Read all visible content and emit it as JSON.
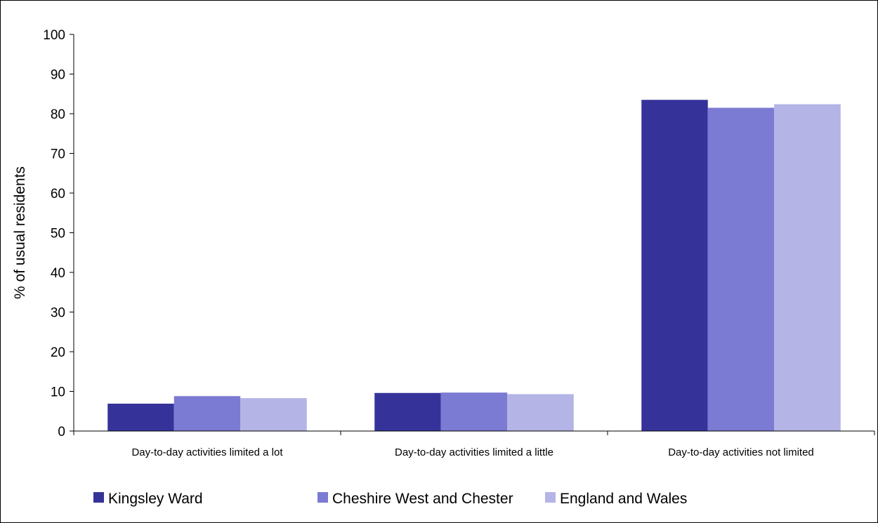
{
  "chart_data": {
    "type": "bar",
    "title": "",
    "xlabel": "",
    "ylabel": "% of usual residents",
    "ylim": [
      0,
      100
    ],
    "yticks": [
      0,
      10,
      20,
      30,
      40,
      50,
      60,
      70,
      80,
      90,
      100
    ],
    "grid": false,
    "legend_position": "bottom",
    "categories": [
      "Day-to-day activities limited a lot",
      "Day-to-day activities limited a little",
      "Day-to-day activities not limited"
    ],
    "series": [
      {
        "name": "Kingsley Ward",
        "color": "#35339a",
        "values": [
          6.9,
          9.6,
          83.5
        ]
      },
      {
        "name": "Cheshire West and Chester",
        "color": "#7b7bd3",
        "values": [
          8.8,
          9.7,
          81.5
        ]
      },
      {
        "name": "England and Wales",
        "color": "#b4b4e6",
        "values": [
          8.3,
          9.3,
          82.4
        ]
      }
    ]
  }
}
